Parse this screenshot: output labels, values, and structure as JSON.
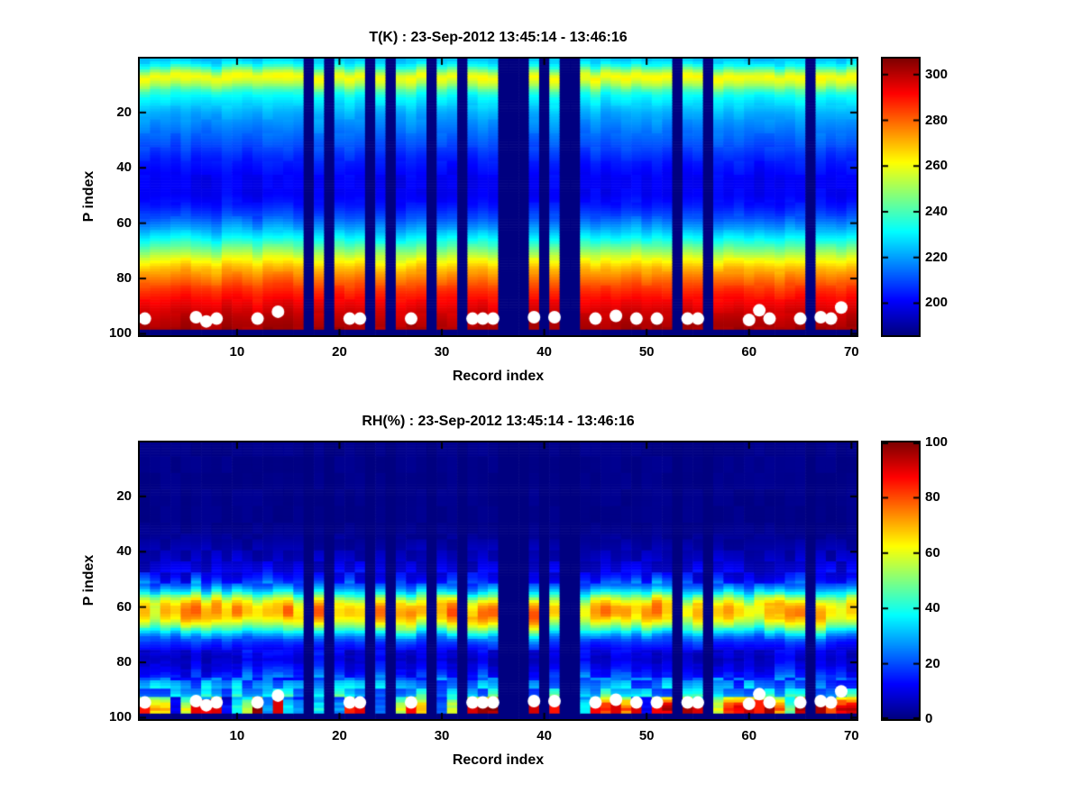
{
  "chart_data": [
    {
      "type": "heatmap",
      "title": "T(K) : 23-Sep-2012 13:45:14 - 13:46:16",
      "xlabel": "Record index",
      "ylabel": "P index",
      "x_range": [
        1,
        70
      ],
      "y_range": [
        1,
        100
      ],
      "y_axis_reversed": true,
      "xticks": [
        10,
        20,
        30,
        40,
        50,
        60,
        70
      ],
      "yticks": [
        20,
        40,
        60,
        80,
        100
      ],
      "colormap": "jet",
      "colorbar": {
        "min": 186,
        "max": 307,
        "ticks": [
          200,
          220,
          240,
          260,
          280,
          300
        ]
      },
      "missing_records": [
        17,
        19,
        23,
        25,
        29,
        32,
        36,
        37,
        38,
        40,
        42,
        43,
        53,
        56,
        66
      ],
      "masked_bottom_p_from": 99,
      "profile_p": [
        1,
        3,
        5,
        6,
        7,
        8,
        10,
        12,
        14,
        17,
        20,
        24,
        28,
        33,
        38,
        44,
        50,
        54,
        58,
        62,
        66,
        70,
        73,
        76,
        80,
        84,
        88,
        92,
        95,
        98,
        100
      ],
      "profile_value": [
        224,
        232,
        248,
        256,
        261,
        260,
        252,
        240,
        232,
        227,
        222,
        218,
        214,
        209,
        204,
        200,
        200,
        204,
        211,
        221,
        233,
        248,
        259,
        269,
        278,
        286,
        292,
        297,
        300,
        302,
        303
      ],
      "surface_dots": [
        [
          1,
          94.5
        ],
        [
          6,
          94
        ],
        [
          7,
          95.5
        ],
        [
          8,
          94.5
        ],
        [
          12,
          94.5
        ],
        [
          14,
          92
        ],
        [
          21,
          94.5
        ],
        [
          22,
          94.5
        ],
        [
          27,
          94.5
        ],
        [
          33,
          94.5
        ],
        [
          34,
          94.5
        ],
        [
          35,
          94.5
        ],
        [
          39,
          94
        ],
        [
          41,
          94
        ],
        [
          45,
          94.5
        ],
        [
          47,
          93.5
        ],
        [
          49,
          94.5
        ],
        [
          51,
          94.5
        ],
        [
          54,
          94.5
        ],
        [
          55,
          94.5
        ],
        [
          60,
          95
        ],
        [
          61,
          91.5
        ],
        [
          62,
          94.5
        ],
        [
          65,
          94.5
        ],
        [
          67,
          94
        ],
        [
          68,
          94.5
        ],
        [
          69,
          90.5
        ]
      ]
    },
    {
      "type": "heatmap",
      "title": "RH(%) : 23-Sep-2012 13:45:14 - 13:46:16",
      "xlabel": "Record index",
      "ylabel": "P index",
      "x_range": [
        1,
        70
      ],
      "y_range": [
        1,
        100
      ],
      "y_axis_reversed": true,
      "xticks": [
        10,
        20,
        30,
        40,
        50,
        60,
        70
      ],
      "yticks": [
        20,
        40,
        60,
        80,
        100
      ],
      "colormap": "jet",
      "colorbar": {
        "min": 0,
        "max": 100,
        "ticks": [
          0,
          20,
          40,
          60,
          80,
          100
        ]
      },
      "missing_records": [
        17,
        19,
        23,
        25,
        29,
        32,
        36,
        37,
        38,
        40,
        42,
        43,
        53,
        56,
        66
      ],
      "masked_bottom_p_from": 99,
      "profile_p": [
        1,
        30,
        34,
        38,
        42,
        46,
        50,
        53,
        55,
        57,
        59,
        61,
        63,
        65,
        67,
        69,
        71,
        73,
        76,
        79,
        82,
        85,
        88,
        91,
        93,
        95,
        97,
        99,
        100
      ],
      "profile_value": [
        1,
        1,
        2,
        4,
        6,
        9,
        14,
        24,
        36,
        52,
        64,
        69,
        69,
        63,
        52,
        38,
        25,
        17,
        11,
        9,
        13,
        19,
        25,
        31,
        40,
        52,
        58,
        50,
        45
      ],
      "surface_dots": [
        [
          1,
          94.5
        ],
        [
          6,
          94
        ],
        [
          7,
          95.5
        ],
        [
          8,
          94.5
        ],
        [
          12,
          94.5
        ],
        [
          14,
          92
        ],
        [
          21,
          94.5
        ],
        [
          22,
          94.5
        ],
        [
          27,
          94.5
        ],
        [
          33,
          94.5
        ],
        [
          34,
          94.5
        ],
        [
          35,
          94.5
        ],
        [
          39,
          94
        ],
        [
          41,
          94
        ],
        [
          45,
          94.5
        ],
        [
          47,
          93.5
        ],
        [
          49,
          94.5
        ],
        [
          51,
          94.5
        ],
        [
          54,
          94.5
        ],
        [
          55,
          94.5
        ],
        [
          60,
          95
        ],
        [
          61,
          91.5
        ],
        [
          62,
          94.5
        ],
        [
          65,
          94.5
        ],
        [
          67,
          94
        ],
        [
          68,
          94.5
        ],
        [
          69,
          90.5
        ]
      ]
    }
  ]
}
